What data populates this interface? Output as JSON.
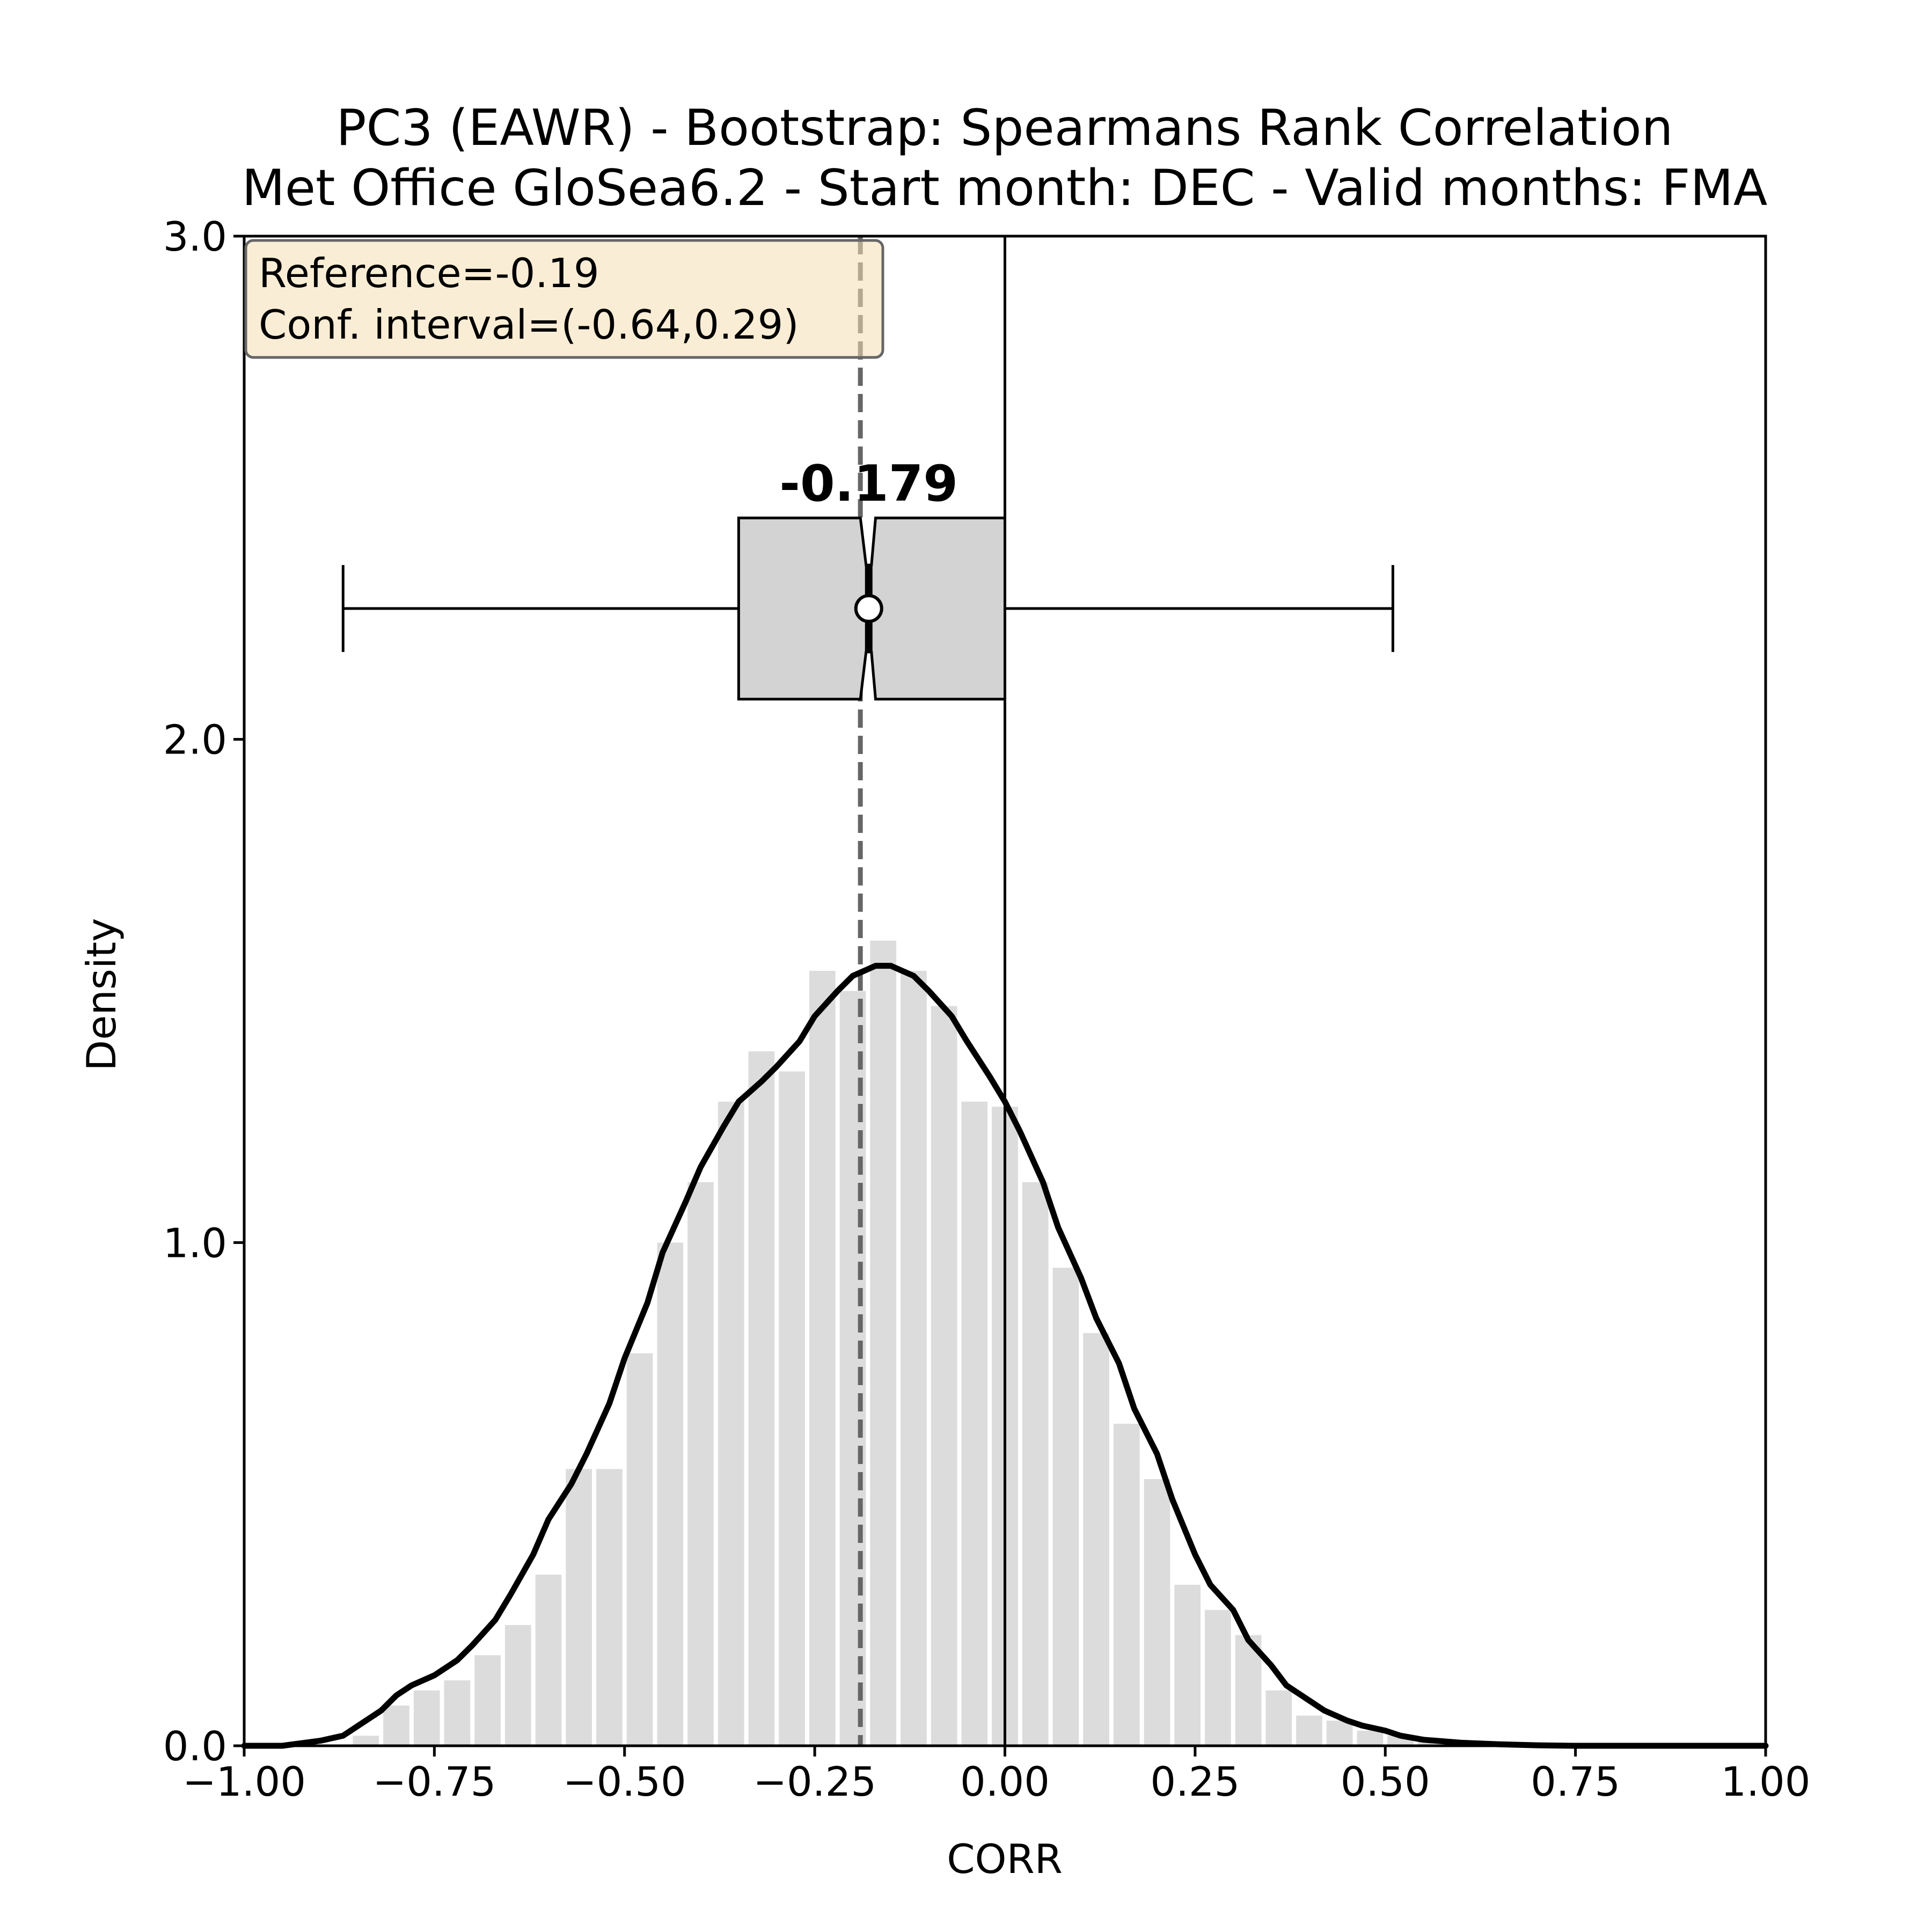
{
  "chart_data": {
    "type": "bar",
    "title_line1": "PC3 (EAWR) - Bootstrap: Spearmans Rank Correlation",
    "title_line2": "Met Office GloSea6.2 - Start month: DEC - Valid months: FMA",
    "xlabel": "CORR",
    "ylabel": "Density",
    "xlim": [
      -1.0,
      1.0
    ],
    "ylim": [
      0.0,
      3.0
    ],
    "x_ticks": [
      {
        "value": -1.0,
        "label": "−1.00"
      },
      {
        "value": -0.75,
        "label": "−0.75"
      },
      {
        "value": -0.5,
        "label": "−0.50"
      },
      {
        "value": -0.25,
        "label": "−0.25"
      },
      {
        "value": 0.0,
        "label": "0.00"
      },
      {
        "value": 0.25,
        "label": "0.25"
      },
      {
        "value": 0.5,
        "label": "0.50"
      },
      {
        "value": 0.75,
        "label": "0.75"
      },
      {
        "value": 1.0,
        "label": "1.00"
      }
    ],
    "y_ticks": [
      {
        "value": 0.0,
        "label": "0.0"
      },
      {
        "value": 1.0,
        "label": "1.0"
      },
      {
        "value": 2.0,
        "label": "2.0"
      },
      {
        "value": 3.0,
        "label": "3.0"
      }
    ],
    "histogram": {
      "bin_width": 0.04,
      "bin_left_edges": [
        -0.86,
        -0.82,
        -0.78,
        -0.74,
        -0.7,
        -0.66,
        -0.62,
        -0.58,
        -0.54,
        -0.5,
        -0.46,
        -0.42,
        -0.38,
        -0.34,
        -0.3,
        -0.26,
        -0.22,
        -0.18,
        -0.14,
        -0.1,
        -0.06,
        -0.02,
        0.02,
        0.06,
        0.1,
        0.14,
        0.18,
        0.22,
        0.26,
        0.3,
        0.34,
        0.38,
        0.42,
        0.46,
        0.5,
        0.54
      ],
      "densities": [
        0.02,
        0.08,
        0.11,
        0.13,
        0.18,
        0.24,
        0.34,
        0.55,
        0.55,
        0.78,
        1.0,
        1.12,
        1.28,
        1.38,
        1.34,
        1.54,
        1.5,
        1.6,
        1.54,
        1.47,
        1.28,
        1.27,
        1.12,
        0.95,
        0.82,
        0.64,
        0.53,
        0.32,
        0.27,
        0.22,
        0.11,
        0.06,
        0.05,
        0.03,
        0.02,
        0.01
      ],
      "color": "#dcdcdc"
    },
    "kde": {
      "x": [
        -1.0,
        -0.95,
        -0.9,
        -0.87,
        -0.85,
        -0.82,
        -0.8,
        -0.78,
        -0.75,
        -0.72,
        -0.7,
        -0.67,
        -0.65,
        -0.62,
        -0.6,
        -0.57,
        -0.55,
        -0.52,
        -0.5,
        -0.47,
        -0.45,
        -0.42,
        -0.4,
        -0.37,
        -0.35,
        -0.32,
        -0.3,
        -0.27,
        -0.25,
        -0.22,
        -0.2,
        -0.17,
        -0.15,
        -0.12,
        -0.1,
        -0.07,
        -0.05,
        -0.02,
        0.0,
        0.02,
        0.05,
        0.07,
        0.1,
        0.12,
        0.15,
        0.17,
        0.2,
        0.22,
        0.25,
        0.27,
        0.3,
        0.32,
        0.35,
        0.37,
        0.4,
        0.42,
        0.45,
        0.47,
        0.5,
        0.52,
        0.55,
        0.6,
        0.65,
        0.7,
        0.75,
        0.8,
        0.9,
        1.0
      ],
      "density": [
        0.0,
        0.0,
        0.01,
        0.02,
        0.04,
        0.07,
        0.1,
        0.12,
        0.14,
        0.17,
        0.2,
        0.25,
        0.3,
        0.38,
        0.45,
        0.52,
        0.58,
        0.68,
        0.77,
        0.88,
        0.98,
        1.08,
        1.15,
        1.23,
        1.28,
        1.32,
        1.35,
        1.4,
        1.45,
        1.5,
        1.53,
        1.55,
        1.55,
        1.53,
        1.5,
        1.45,
        1.4,
        1.33,
        1.28,
        1.22,
        1.12,
        1.03,
        0.93,
        0.85,
        0.76,
        0.67,
        0.58,
        0.49,
        0.38,
        0.32,
        0.27,
        0.21,
        0.16,
        0.12,
        0.09,
        0.07,
        0.05,
        0.04,
        0.03,
        0.02,
        0.012,
        0.006,
        0.003,
        0.001,
        0.0,
        0.0,
        0.0,
        0.0
      ]
    },
    "boxplot": {
      "y_center": 2.26,
      "box_bottom": 2.08,
      "box_top": 2.44,
      "whisker_low": -0.87,
      "q1": -0.35,
      "median": -0.179,
      "q3": 0.0,
      "whisker_high": 0.51,
      "notch_low": -0.19,
      "notch_high": -0.17,
      "median_label": "-0.179",
      "box_color": "#d3d3d3"
    },
    "reference_line": {
      "x": -0.19,
      "color": "#666666"
    },
    "zero_line": {
      "x": 0.0
    },
    "info_box": {
      "line1": "Reference=-0.19",
      "line2": "Conf. interval=(-0.64,0.29)",
      "background": "#f5deb3"
    },
    "grid": false
  }
}
